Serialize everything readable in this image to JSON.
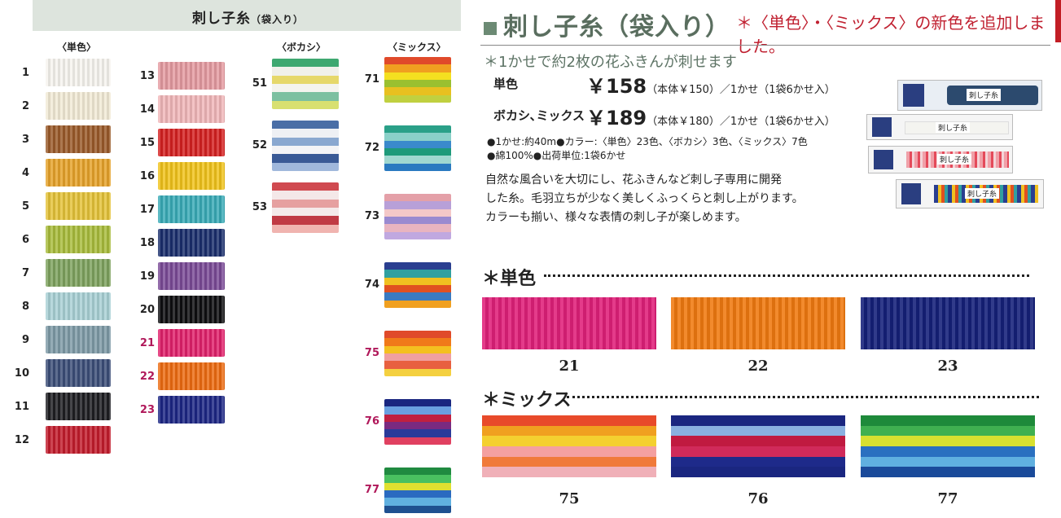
{
  "left": {
    "title": "刺し子糸",
    "subtitle": "（袋入り）",
    "col_tanshoku": "〈単色〉",
    "col_bokashi": "〈ボカシ〉",
    "col_mix": "〈ミックス〉",
    "solid_a": [
      {
        "n": "1",
        "c": "#f6f4ef"
      },
      {
        "n": "2",
        "c": "#f2ead6"
      },
      {
        "n": "3",
        "c": "#9a5a2a"
      },
      {
        "n": "4",
        "c": "#e6a22a"
      },
      {
        "n": "5",
        "c": "#e4c238"
      },
      {
        "n": "6",
        "c": "#a8bc3c"
      },
      {
        "n": "7",
        "c": "#7ea25e"
      },
      {
        "n": "8",
        "c": "#a8d0d4"
      },
      {
        "n": "9",
        "c": "#7e9aa6"
      },
      {
        "n": "10",
        "c": "#3c4e78"
      },
      {
        "n": "11",
        "c": "#1e1e22"
      },
      {
        "n": "12",
        "c": "#c21c2c"
      }
    ],
    "solid_b": [
      {
        "n": "13",
        "c": "#e49aa0",
        "red": false
      },
      {
        "n": "14",
        "c": "#f0b6b8",
        "red": false
      },
      {
        "n": "15",
        "c": "#d42020",
        "red": false
      },
      {
        "n": "16",
        "c": "#f0c21a",
        "red": false
      },
      {
        "n": "17",
        "c": "#38aab6",
        "red": false
      },
      {
        "n": "18",
        "c": "#1a2e6c",
        "red": false
      },
      {
        "n": "19",
        "c": "#7a4a96",
        "red": false
      },
      {
        "n": "20",
        "c": "#0e0e10",
        "red": false
      },
      {
        "n": "21",
        "c": "#e0206a",
        "red": true
      },
      {
        "n": "22",
        "c": "#ec6a10",
        "red": true
      },
      {
        "n": "23",
        "c": "#1c2684",
        "red": true
      }
    ],
    "bokashi": [
      {
        "n": "51",
        "colors": [
          "#3ea870",
          "#f0f0ea",
          "#e6d86a",
          "#f4f4ee",
          "#7cc0a0",
          "#d8e070"
        ]
      },
      {
        "n": "52",
        "colors": [
          "#4a6ea6",
          "#eef0f4",
          "#8aa8d0",
          "#f4f4f6",
          "#3a5a96",
          "#a0b8dc"
        ]
      },
      {
        "n": "53",
        "colors": [
          "#d04a50",
          "#f4e8e8",
          "#e6a0a0",
          "#f4eaea",
          "#c03a44",
          "#f0b4b0"
        ]
      }
    ],
    "mix": [
      {
        "n": "71",
        "red": false,
        "colors": [
          "#e04a2a",
          "#f0a020",
          "#f4e020",
          "#9ac030",
          "#e8c020",
          "#c0d040"
        ]
      },
      {
        "n": "72",
        "red": false,
        "colors": [
          "#2aa088",
          "#8ad0c8",
          "#3a8acc",
          "#1e9a7a",
          "#a0d8d0",
          "#2a7ac0"
        ]
      },
      {
        "n": "73",
        "red": false,
        "colors": [
          "#e4a0a8",
          "#b8a0d8",
          "#f4c8c8",
          "#9a8ad0",
          "#e8b4c0",
          "#c0a8e0"
        ]
      },
      {
        "n": "74",
        "red": false,
        "colors": [
          "#2a3e90",
          "#30a0a0",
          "#f0c020",
          "#e05020",
          "#3a7ac0",
          "#f0a020"
        ]
      },
      {
        "n": "75",
        "red": true,
        "colors": [
          "#e04a2a",
          "#f07a1a",
          "#f4c020",
          "#f0a0a0",
          "#e86040",
          "#f4d040"
        ]
      },
      {
        "n": "76",
        "red": true,
        "colors": [
          "#1a2680",
          "#6aa0e0",
          "#c02040",
          "#7a2a80",
          "#2a3a9a",
          "#e04060"
        ]
      },
      {
        "n": "77",
        "red": true,
        "colors": [
          "#208a40",
          "#4ac060",
          "#e0e030",
          "#2a6ac0",
          "#60b0e0",
          "#1e5090"
        ]
      }
    ]
  },
  "right": {
    "title": "刺し子糸（袋入り）",
    "announce": "＊〈単色〉・〈ミックス〉の新色を追加しました。",
    "note": "＊1かせで約2枚の花ふきんが刺せます",
    "price1_label": "単色",
    "price1": "￥158",
    "price1_detail": "（本体￥150）／1かせ（1袋6かせ入）",
    "price2_label": "ボカシ､ミックス",
    "price2": "￥189",
    "price2_detail": "（本体￥180）／1かせ（1袋6かせ入）",
    "spec1": "●1かせ:約40m●カラー:〈単色〉23色、〈ボカシ〉3色、〈ミックス〉7色",
    "spec2": "●綿100%●出荷単位:1袋6かせ",
    "desc1": "自然な風合いを大切にし、花ふきんなど刺し子専用に開発",
    "desc2": "した糸。毛羽立ちが少なく美しくふっくらと刺し上がります。",
    "desc3": "カラーも揃い、様々な表情の刺し子が楽しめます。",
    "pkg_label": "刺し子糸",
    "section_solid": "＊単色",
    "section_mix": "＊ミックス",
    "solid": [
      {
        "n": "21",
        "c": "#e0207a"
      },
      {
        "n": "22",
        "c": "#f07a10"
      },
      {
        "n": "23",
        "c": "#15207a"
      }
    ],
    "mixbig": [
      {
        "n": "75",
        "colors": [
          "#e84a2a",
          "#f0a020",
          "#f4d030",
          "#f4a0a0",
          "#f07a3a",
          "#f0b0b8"
        ]
      },
      {
        "n": "76",
        "colors": [
          "#1a2680",
          "#8ab0e0",
          "#c01a40",
          "#d02a5a",
          "#1e2a8a",
          "#1a2680"
        ]
      },
      {
        "n": "77",
        "colors": [
          "#1e8a3a",
          "#40b050",
          "#d8e030",
          "#2a70c0",
          "#60b0e0",
          "#1a4a9a"
        ]
      }
    ]
  }
}
